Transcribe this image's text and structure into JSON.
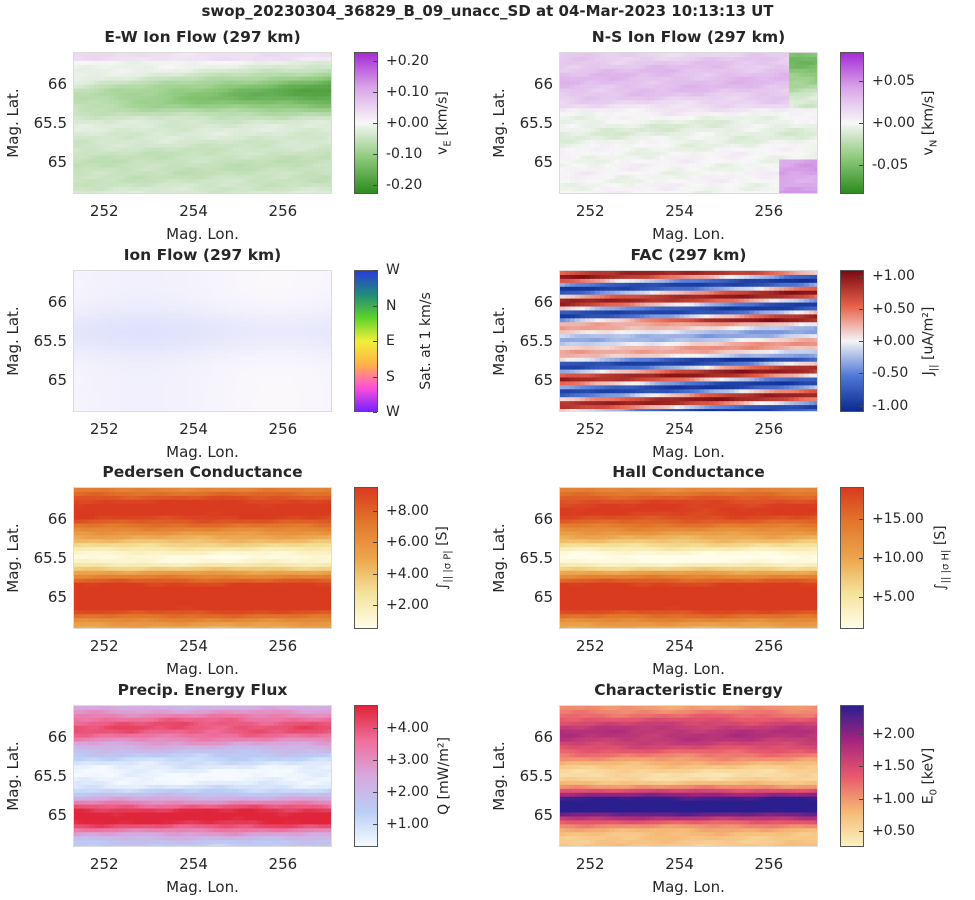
{
  "suptitle": "swop_20230304_36829_B_09_unacc_SD at 04-Mar-2023 10:13:13 UT",
  "common": {
    "xlabel": "Mag. Lon.",
    "ylabel": "Mag. Lat.",
    "xticks": [
      "252",
      "254",
      "256"
    ],
    "yticks": [
      "66",
      "65.5",
      "65"
    ]
  },
  "chart_data": [
    {
      "type": "heatmap",
      "id": "ew",
      "title": "E-W Ion Flow (297 km)",
      "xlim": [
        251.3,
        257.1
      ],
      "ylim": [
        64.6,
        66.4
      ],
      "pattern": "ew",
      "colorbar": {
        "label": "v_E [km/s]",
        "label_main": "v",
        "label_sub": "E",
        "label_rest": " [km/s]",
        "range": [
          -0.23,
          0.23
        ],
        "ticks": [
          "+0.20",
          "+0.10",
          "+0.00",
          "-0.10",
          "-0.20"
        ],
        "tick_values": [
          0.2,
          0.1,
          0.0,
          -0.1,
          -0.2
        ],
        "colormap": [
          "#2e8b1f",
          "#8cc97a",
          "#f7f7f7",
          "#d9a6e8",
          "#a52bd6"
        ]
      }
    },
    {
      "type": "heatmap",
      "id": "ns",
      "title": "N-S Ion Flow (297 km)",
      "xlim": [
        251.3,
        257.1
      ],
      "ylim": [
        64.6,
        66.4
      ],
      "pattern": "ns",
      "colorbar": {
        "label": "v_N [km/s]",
        "label_main": "v",
        "label_sub": "N",
        "label_rest": " [km/s]",
        "range": [
          -0.085,
          0.085
        ],
        "ticks": [
          "+0.05",
          "+0.00",
          "-0.05"
        ],
        "tick_values": [
          0.05,
          0.0,
          -0.05
        ],
        "colormap": [
          "#2e8b1f",
          "#8cc97a",
          "#f7f7f7",
          "#d9a6e8",
          "#a52bd6"
        ]
      }
    },
    {
      "type": "heatmap",
      "id": "flow",
      "title": "Ion Flow (297 km)",
      "xlim": [
        251.3,
        257.1
      ],
      "ylim": [
        64.6,
        66.4
      ],
      "pattern": "flow",
      "colorbar": {
        "label": "Sat. at 1 km/s",
        "label_main": "Sat. at 1 km/s",
        "label_sub": "",
        "label_rest": "",
        "range": [
          0,
          1
        ],
        "ticks": [
          "W",
          "N",
          "E",
          "S",
          "W"
        ],
        "tick_values": [
          1.0,
          0.75,
          0.5,
          0.25,
          0.0
        ],
        "colormap": [
          "#7a22ff",
          "#ff4fd8",
          "#ffb347",
          "#f0ef3a",
          "#5dd12a",
          "#1f8b7a",
          "#2a3cd9"
        ]
      }
    },
    {
      "type": "heatmap",
      "id": "fac",
      "title": "FAC (297 km)",
      "xlim": [
        251.3,
        257.1
      ],
      "ylim": [
        64.6,
        66.4
      ],
      "pattern": "fac",
      "colorbar": {
        "label": "J_|| [uA/m^2]",
        "label_main": "J",
        "label_sub": "||",
        "label_rest": " [uA/m²]",
        "range": [
          -1.1,
          1.1
        ],
        "ticks": [
          "+1.00",
          "+0.50",
          "+0.00",
          "-0.50",
          "-1.00"
        ],
        "tick_values": [
          1.0,
          0.5,
          0.0,
          -0.5,
          -1.0
        ],
        "colormap": [
          "#0b2a8f",
          "#4f77d6",
          "#f4f4f4",
          "#e8604a",
          "#7a0a12"
        ]
      }
    },
    {
      "type": "heatmap",
      "id": "ped",
      "title": "Pedersen Conductance",
      "xlim": [
        251.3,
        257.1
      ],
      "ylim": [
        64.6,
        66.4
      ],
      "pattern": "ped",
      "colorbar": {
        "label": "∫_|| σ_P [S]",
        "label_main": "∫",
        "label_sub": "|| |σ P|",
        "label_rest": " [S]",
        "range": [
          0.5,
          9.5
        ],
        "ticks": [
          "+8.00",
          "+6.00",
          "+4.00",
          "+2.00"
        ],
        "tick_values": [
          8,
          6,
          4,
          2
        ],
        "colormap": [
          "#fffde8",
          "#f4e29a",
          "#eba54d",
          "#e2782c",
          "#d93b1f"
        ]
      }
    },
    {
      "type": "heatmap",
      "id": "hall",
      "title": "Hall Conductance",
      "xlim": [
        251.3,
        257.1
      ],
      "ylim": [
        64.6,
        66.4
      ],
      "pattern": "hall",
      "colorbar": {
        "label": "∫_|| σ_H [S]",
        "label_main": "∫",
        "label_sub": "|| |σ H|",
        "label_rest": " [S]",
        "range": [
          1,
          19
        ],
        "ticks": [
          "+15.00",
          "+10.00",
          "+5.00"
        ],
        "tick_values": [
          15,
          10,
          5
        ],
        "colormap": [
          "#fffde8",
          "#f4e29a",
          "#eba54d",
          "#e2782c",
          "#d93b1f"
        ]
      }
    },
    {
      "type": "heatmap",
      "id": "q",
      "title": "Precip. Energy Flux",
      "xlim": [
        251.3,
        257.1
      ],
      "ylim": [
        64.6,
        66.4
      ],
      "pattern": "q",
      "colorbar": {
        "label": "Q [mW/m^2]",
        "label_main": "Q [mW/m²]",
        "label_sub": "",
        "label_rest": "",
        "range": [
          0.3,
          4.7
        ],
        "ticks": [
          "+4.00",
          "+3.00",
          "+2.00",
          "+1.00"
        ],
        "tick_values": [
          4,
          3,
          2,
          1
        ],
        "colormap": [
          "#f4faff",
          "#b9cdf5",
          "#d7a8de",
          "#ef6f9c",
          "#e0243a"
        ]
      }
    },
    {
      "type": "heatmap",
      "id": "e0",
      "title": "Characteristic Energy",
      "xlim": [
        251.3,
        257.1
      ],
      "ylim": [
        64.6,
        66.4
      ],
      "pattern": "e0",
      "colorbar": {
        "label": "E_0 [keV]",
        "label_main": "E",
        "label_sub": "0",
        "label_rest": " [keV]",
        "range": [
          0.25,
          2.45
        ],
        "ticks": [
          "+2.00",
          "+1.50",
          "+1.00",
          "+0.50"
        ],
        "tick_values": [
          2.0,
          1.5,
          1.0,
          0.5
        ],
        "colormap": [
          "#fbf1c0",
          "#f5b874",
          "#e8586c",
          "#a4257e",
          "#2b1f8f"
        ]
      }
    }
  ]
}
